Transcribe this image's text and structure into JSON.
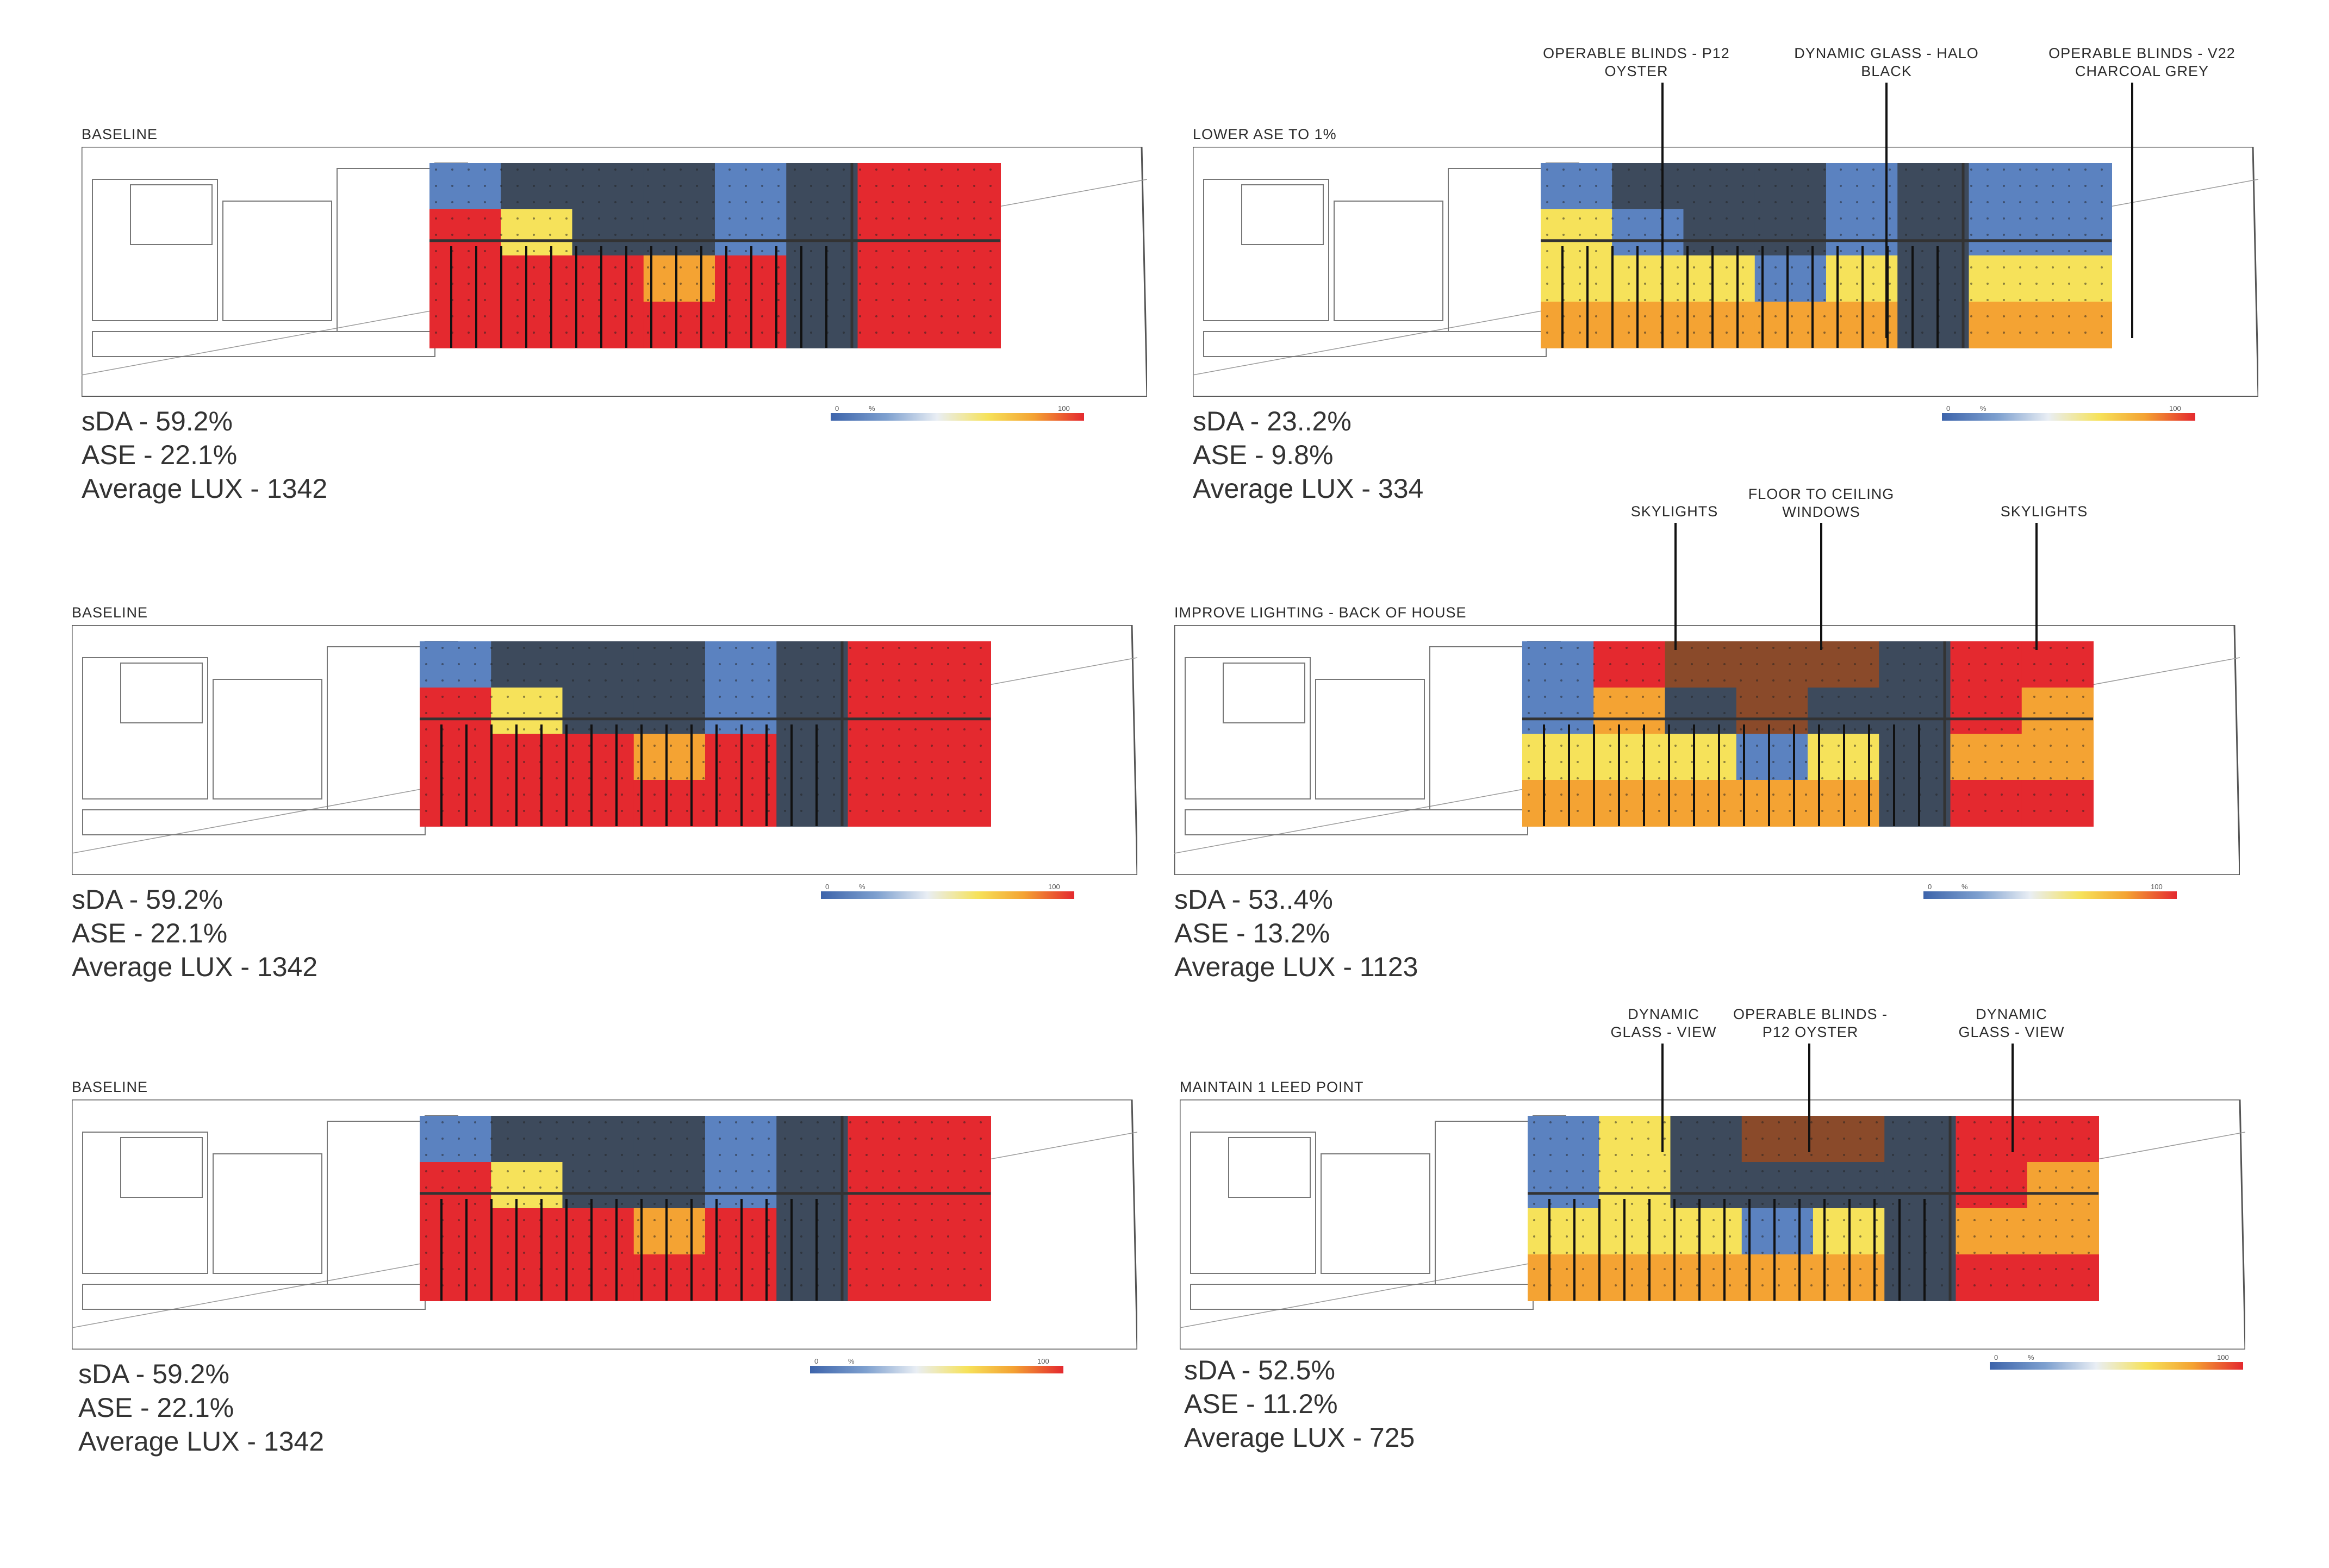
{
  "panels": [
    {
      "title": "BASELINE",
      "sda": "sDA - 59.2%",
      "ase": "ASE - 22.1%",
      "lux": "Average LUX - 1342",
      "legend": {
        "min": "0",
        "unit": "%",
        "max": "100"
      }
    },
    {
      "title": "LOWER ASE TO 1%",
      "sda": "sDA - 23..2%",
      "ase": "ASE - 9.8%",
      "lux": "Average LUX - 334",
      "legend": {
        "min": "0",
        "unit": "%",
        "max": "100"
      },
      "callouts": [
        {
          "line1": "OPERABLE BLINDS - P12",
          "line2": "OYSTER"
        },
        {
          "line1": "DYNAMIC GLASS - HALO",
          "line2": "BLACK"
        },
        {
          "line1": "OPERABLE BLINDS - V22",
          "line2": "CHARCOAL GREY"
        }
      ]
    },
    {
      "title": "BASELINE",
      "sda": "sDA - 59.2%",
      "ase": "ASE - 22.1%",
      "lux": "Average LUX - 1342",
      "legend": {
        "min": "0",
        "unit": "%",
        "max": "100"
      }
    },
    {
      "title": "IMPROVE LIGHTING - BACK OF HOUSE",
      "sda": "sDA - 53..4%",
      "ase": "ASE - 13.2%",
      "lux": "Average LUX - 1123",
      "legend": {
        "min": "0",
        "unit": "%",
        "max": "100"
      },
      "callouts": [
        {
          "line1": "SKYLIGHTS",
          "line2": ""
        },
        {
          "line1": "FLOOR TO CEILING",
          "line2": "WINDOWS"
        },
        {
          "line1": "SKYLIGHTS",
          "line2": ""
        }
      ]
    },
    {
      "title": "BASELINE",
      "sda": "sDA - 59.2%",
      "ase": "ASE - 22.1%",
      "lux": "Average LUX - 1342",
      "legend": {
        "min": "0",
        "unit": "%",
        "max": "100"
      }
    },
    {
      "title": "MAINTAIN 1 LEED POINT",
      "sda": "sDA - 52.5%",
      "ase": "ASE - 11.2%",
      "lux": "Average LUX - 725",
      "legend": {
        "min": "0",
        "unit": "%",
        "max": "100"
      },
      "callouts": [
        {
          "line1": "DYNAMIC",
          "line2": "GLASS - VIEW"
        },
        {
          "line1": "OPERABLE BLINDS -",
          "line2": "P12 OYSTER"
        },
        {
          "line1": "DYNAMIC",
          "line2": "GLASS - VIEW"
        }
      ]
    }
  ],
  "colors": {
    "high": "#e4292f",
    "mid": "#f6e25a",
    "orange": "#f4a333",
    "low": "#3d64ab",
    "dark": "#3d4a5c",
    "line": "#555555"
  },
  "heatmaps": {
    "baseline": [
      [
        "blue",
        "grey",
        "grey",
        "grey",
        "blue",
        "grey",
        "red",
        "red"
      ],
      [
        "red",
        "yellow",
        "grey",
        "grey",
        "blue",
        "grey",
        "red",
        "red"
      ],
      [
        "red",
        "red",
        "red",
        "orange",
        "red",
        "grey",
        "red",
        "red"
      ],
      [
        "red",
        "red",
        "red",
        "red",
        "red",
        "grey",
        "red",
        "red"
      ]
    ],
    "lowerase": [
      [
        "blue",
        "grey",
        "grey",
        "grey",
        "blue",
        "grey",
        "blue",
        "blue"
      ],
      [
        "yellow",
        "blue",
        "grey",
        "grey",
        "blue",
        "grey",
        "blue",
        "blue"
      ],
      [
        "yellow",
        "yellow",
        "yellow",
        "blue",
        "yellow",
        "grey",
        "yellow",
        "yellow"
      ],
      [
        "orange",
        "orange",
        "orange",
        "orange",
        "orange",
        "grey",
        "orange",
        "orange"
      ]
    ],
    "backofhouse": [
      [
        "blue",
        "red",
        "brown",
        "brown",
        "brown",
        "grey",
        "red",
        "red"
      ],
      [
        "blue",
        "orange",
        "grey",
        "brown",
        "grey",
        "grey",
        "red",
        "orange"
      ],
      [
        "yellow",
        "yellow",
        "yellow",
        "blue",
        "yellow",
        "grey",
        "orange",
        "orange"
      ],
      [
        "orange",
        "orange",
        "orange",
        "orange",
        "orange",
        "grey",
        "red",
        "red"
      ]
    ],
    "leed": [
      [
        "blue",
        "yellow",
        "grey",
        "brown",
        "brown",
        "grey",
        "red",
        "red"
      ],
      [
        "blue",
        "yellow",
        "grey",
        "grey",
        "grey",
        "grey",
        "red",
        "orange"
      ],
      [
        "yellow",
        "yellow",
        "yellow",
        "blue",
        "yellow",
        "grey",
        "orange",
        "orange"
      ],
      [
        "orange",
        "orange",
        "orange",
        "orange",
        "orange",
        "grey",
        "red",
        "red"
      ]
    ]
  }
}
